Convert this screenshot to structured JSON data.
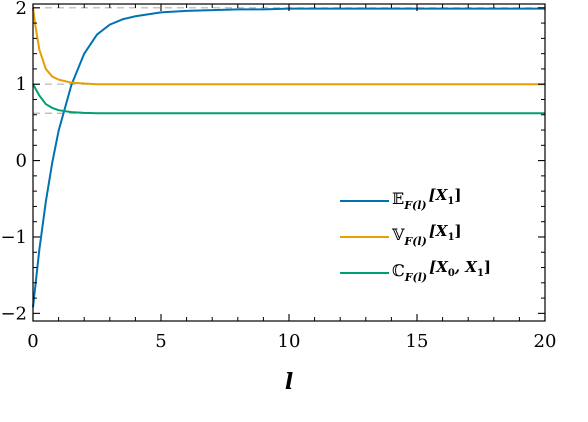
{
  "chart_data": {
    "type": "line",
    "title": "",
    "xlabel": "l",
    "ylabel": "",
    "xlim": [
      0,
      20
    ],
    "ylim": [
      -2.1,
      2.05
    ],
    "xticks": [
      0,
      5,
      10,
      15,
      20
    ],
    "xtick_labels": [
      "0",
      "5",
      "10",
      "15",
      "20"
    ],
    "yticks": [
      -2,
      -1,
      0,
      1,
      2
    ],
    "ytick_labels": [
      "−2",
      "−1",
      "0",
      "1",
      "2"
    ],
    "reference_lines": [
      2.0,
      1.0,
      0.62
    ],
    "grid": false,
    "legend_position": "center-right",
    "series": [
      {
        "name": "𝔼F(l)[X1]",
        "color": "#0072B2",
        "x": [
          0,
          0.25,
          0.5,
          0.75,
          1,
          1.5,
          2,
          2.5,
          3,
          3.5,
          4,
          5,
          6,
          7,
          8,
          9,
          10,
          12,
          14,
          16,
          18,
          20
        ],
        "y": [
          -1.92,
          -1.16,
          -0.54,
          -0.03,
          0.39,
          0.99,
          1.4,
          1.65,
          1.78,
          1.85,
          1.89,
          1.94,
          1.96,
          1.97,
          1.98,
          1.98,
          1.99,
          1.99,
          1.99,
          1.99,
          1.99,
          1.99
        ]
      },
      {
        "name": "𝕍F(l)[X1]",
        "color": "#E69F00",
        "x": [
          0,
          0.1,
          0.25,
          0.5,
          0.75,
          1,
          1.5,
          2,
          2.5,
          3,
          4,
          5,
          7,
          10,
          15,
          20
        ],
        "y": [
          2.0,
          1.75,
          1.45,
          1.2,
          1.1,
          1.06,
          1.02,
          1.01,
          1.0,
          1.0,
          1.0,
          1.0,
          1.0,
          1.0,
          1.0,
          1.0
        ]
      },
      {
        "name": "ℂF(l)[X0, X1]",
        "color": "#009E73",
        "x": [
          0,
          0.25,
          0.5,
          0.75,
          1,
          1.5,
          2,
          2.5,
          3,
          4,
          5,
          7,
          10,
          15,
          20
        ],
        "y": [
          1.0,
          0.85,
          0.74,
          0.69,
          0.66,
          0.635,
          0.625,
          0.62,
          0.62,
          0.62,
          0.62,
          0.62,
          0.62,
          0.62,
          0.62
        ]
      }
    ],
    "legend": [
      {
        "sym": "𝔼",
        "sub": "F(l)",
        "arg": "[X",
        "argsub": "1",
        "tail": "]"
      },
      {
        "sym": "𝕍",
        "sub": "F(l)",
        "arg": "[X",
        "argsub": "1",
        "tail": "]"
      },
      {
        "sym": "ℂ",
        "sub": "F(l)",
        "arg": "[X",
        "argsub": "0",
        "tail": ", X",
        "argsub2": "1",
        "tail2": "]"
      }
    ]
  }
}
